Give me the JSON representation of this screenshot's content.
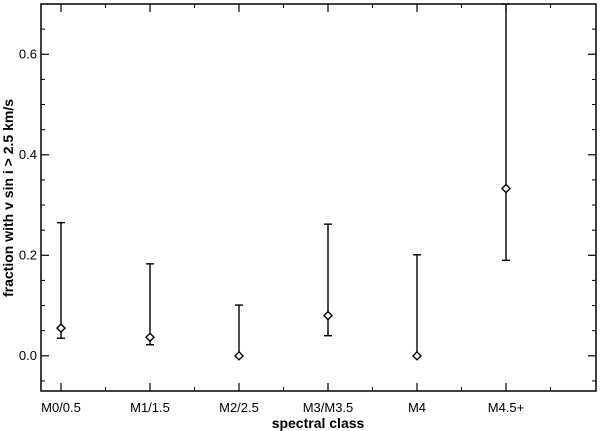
{
  "chart_data": {
    "type": "scatter",
    "xlabel": "spectral class",
    "ylabel": "fraction with v sin i > 2.5 km/s",
    "categories": [
      "M0/0.5",
      "M1/1.5",
      "M2/2.5",
      "M3/M3.5",
      "M4",
      "M4.5+"
    ],
    "ylim": [
      -0.07,
      0.7
    ],
    "y_ticks": [
      0.0,
      0.2,
      0.4,
      0.6
    ],
    "y_tick_labels": [
      "0.0",
      "0.2",
      "0.4",
      "0.6"
    ],
    "series": [
      {
        "marker": "diamond",
        "points": [
          {
            "category": "M0/0.5",
            "value": 0.055,
            "err_low": 0.035,
            "err_high": 0.265
          },
          {
            "category": "M1/1.5",
            "value": 0.037,
            "err_low": 0.022,
            "err_high": 0.183
          },
          {
            "category": "M2/2.5",
            "value": 0.0,
            "err_low": 0.0,
            "err_high": 0.101
          },
          {
            "category": "M3/M3.5",
            "value": 0.08,
            "err_low": 0.04,
            "err_high": 0.262
          },
          {
            "category": "M4",
            "value": 0.0,
            "err_low": 0.0,
            "err_high": 0.201
          },
          {
            "category": "M4.5+",
            "value": 0.333,
            "err_low": 0.19,
            "err_high": 0.7
          }
        ]
      }
    ],
    "grid": false,
    "colors": {
      "axis": "#000000",
      "marker": "#000000"
    }
  }
}
